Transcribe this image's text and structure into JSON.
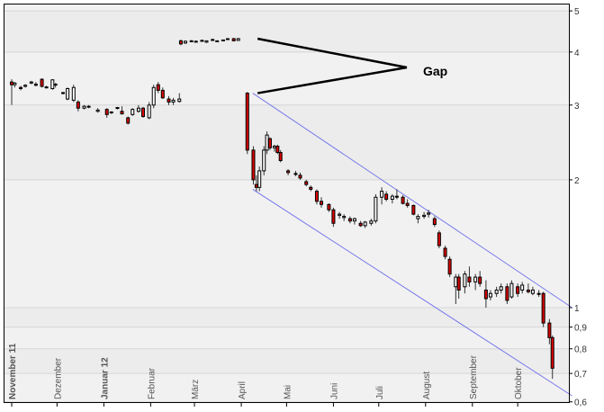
{
  "chart_data": {
    "type": "candlestick",
    "title": "",
    "xlabel": "",
    "ylabel": "",
    "y_scale": "log",
    "ylim": [
      0.6,
      5.2
    ],
    "grid": true,
    "y_ticks": [
      {
        "value": 5,
        "label": "5"
      },
      {
        "value": 4,
        "label": "4"
      },
      {
        "value": 3,
        "label": "3"
      },
      {
        "value": 2,
        "label": "2"
      },
      {
        "value": 1,
        "label": "1"
      },
      {
        "value": 0.9,
        "label": "0,9"
      },
      {
        "value": 0.8,
        "label": "0,8"
      },
      {
        "value": 0.7,
        "label": "0,7"
      },
      {
        "value": 0.6,
        "label": "0,6"
      }
    ],
    "x_ticks": [
      {
        "date": "2011-11-01",
        "label": "November 11",
        "bold": true
      },
      {
        "date": "2011-12-01",
        "label": "Dezember",
        "bold": false
      },
      {
        "date": "2012-01-01",
        "label": "Januar 12",
        "bold": true
      },
      {
        "date": "2012-02-01",
        "label": "Februar",
        "bold": false
      },
      {
        "date": "2012-03-01",
        "label": "März",
        "bold": false
      },
      {
        "date": "2012-04-01",
        "label": "April",
        "bold": false
      },
      {
        "date": "2012-05-01",
        "label": "Mai",
        "bold": false
      },
      {
        "date": "2012-06-01",
        "label": "Juni",
        "bold": false
      },
      {
        "date": "2012-07-01",
        "label": "Juli",
        "bold": false
      },
      {
        "date": "2012-08-01",
        "label": "August",
        "bold": false
      },
      {
        "date": "2012-09-01",
        "label": "September",
        "bold": false
      },
      {
        "date": "2012-10-01",
        "label": "Oktober",
        "bold": false
      }
    ],
    "colors": {
      "up": "#ffffff",
      "down": "#dd0000",
      "outline": "#000000",
      "channel": "#7777ee",
      "grid": "#d6d6d6",
      "background": "#eeeeee"
    },
    "candles_columns": [
      "date",
      "open",
      "high",
      "low",
      "close"
    ],
    "candles": [
      [
        "2011-11-01",
        3.4,
        3.45,
        3.0,
        3.35
      ],
      [
        "2011-11-03",
        3.35,
        3.4,
        3.3,
        3.38
      ],
      [
        "2011-11-07",
        3.3,
        3.33,
        3.25,
        3.28
      ],
      [
        "2011-11-10",
        3.32,
        3.36,
        3.3,
        3.34
      ],
      [
        "2011-11-14",
        3.38,
        3.42,
        3.36,
        3.4
      ],
      [
        "2011-11-17",
        3.36,
        3.4,
        3.32,
        3.34
      ],
      [
        "2011-11-21",
        3.45,
        3.47,
        3.3,
        3.32
      ],
      [
        "2011-11-24",
        3.3,
        3.33,
        3.28,
        3.31
      ],
      [
        "2011-11-28",
        3.28,
        3.45,
        3.26,
        3.44
      ],
      [
        "2011-11-30",
        3.35,
        3.38,
        3.3,
        3.36
      ],
      [
        "2011-12-05",
        3.2,
        3.22,
        3.18,
        3.21
      ],
      [
        "2011-12-08",
        3.1,
        3.3,
        3.08,
        3.28
      ],
      [
        "2011-12-12",
        3.08,
        3.35,
        3.05,
        3.3
      ],
      [
        "2011-12-15",
        3.05,
        3.08,
        2.9,
        2.95
      ],
      [
        "2011-12-19",
        2.95,
        3.0,
        2.93,
        2.98
      ],
      [
        "2011-12-22",
        2.97,
        3.0,
        2.95,
        2.98
      ],
      [
        "2011-12-28",
        2.9,
        2.95,
        2.88,
        2.92
      ],
      [
        "2012-01-03",
        2.93,
        2.95,
        2.8,
        2.85
      ],
      [
        "2012-01-06",
        2.88,
        2.9,
        2.86,
        2.89
      ],
      [
        "2012-01-10",
        2.95,
        2.97,
        2.93,
        2.96
      ],
      [
        "2012-01-13",
        2.9,
        2.98,
        2.85,
        2.86
      ],
      [
        "2012-01-17",
        2.8,
        2.82,
        2.7,
        2.72
      ],
      [
        "2012-01-20",
        2.85,
        2.95,
        2.83,
        2.93
      ],
      [
        "2012-01-24",
        2.9,
        3.0,
        2.88,
        2.95
      ],
      [
        "2012-01-27",
        2.95,
        2.97,
        2.8,
        2.82
      ],
      [
        "2012-01-31",
        2.8,
        3.05,
        2.78,
        3.0
      ],
      [
        "2012-02-03",
        3.0,
        3.35,
        2.95,
        3.3
      ],
      [
        "2012-02-06",
        3.35,
        3.4,
        3.2,
        3.25
      ],
      [
        "2012-02-09",
        3.25,
        3.3,
        3.1,
        3.12
      ],
      [
        "2012-02-13",
        3.1,
        3.15,
        3.0,
        3.05
      ],
      [
        "2012-02-16",
        3.05,
        3.12,
        3.0,
        3.08
      ],
      [
        "2012-02-20",
        3.06,
        3.2,
        3.04,
        3.1
      ],
      [
        "2012-02-21",
        4.25,
        4.28,
        4.15,
        4.18
      ],
      [
        "2012-02-24",
        4.2,
        4.26,
        4.18,
        4.24
      ],
      [
        "2012-02-28",
        4.24,
        4.27,
        4.22,
        4.25
      ],
      [
        "2012-03-02",
        4.24,
        4.26,
        4.22,
        4.23
      ],
      [
        "2012-03-06",
        4.25,
        4.28,
        4.24,
        4.26
      ],
      [
        "2012-03-09",
        4.22,
        4.26,
        4.2,
        4.25
      ],
      [
        "2012-03-13",
        4.27,
        4.3,
        4.25,
        4.28
      ],
      [
        "2012-03-16",
        4.24,
        4.26,
        4.23,
        4.25
      ],
      [
        "2012-03-20",
        4.26,
        4.28,
        4.25,
        4.27
      ],
      [
        "2012-03-23",
        4.28,
        4.31,
        4.27,
        4.3
      ],
      [
        "2012-03-27",
        4.3,
        4.32,
        4.24,
        4.25
      ],
      [
        "2012-03-30",
        4.26,
        4.32,
        4.25,
        4.3
      ],
      [
        "2012-04-05",
        3.2,
        3.22,
        2.3,
        2.35
      ],
      [
        "2012-04-09",
        2.35,
        2.4,
        1.95,
        2.0
      ],
      [
        "2012-04-11",
        1.95,
        2.05,
        1.88,
        1.92
      ],
      [
        "2012-04-13",
        1.92,
        2.15,
        1.88,
        2.1
      ],
      [
        "2012-04-16",
        2.1,
        2.4,
        2.05,
        2.35
      ],
      [
        "2012-04-18",
        2.35,
        2.6,
        2.3,
        2.55
      ],
      [
        "2012-04-20",
        2.5,
        2.52,
        2.35,
        2.38
      ],
      [
        "2012-04-23",
        2.38,
        2.42,
        2.33,
        2.4
      ],
      [
        "2012-04-25",
        2.4,
        2.42,
        2.3,
        2.32
      ],
      [
        "2012-04-27",
        2.32,
        2.35,
        2.2,
        2.22
      ],
      [
        "2012-05-02",
        2.1,
        2.12,
        2.05,
        2.08
      ],
      [
        "2012-05-07",
        2.07,
        2.1,
        2.04,
        2.06
      ],
      [
        "2012-05-10",
        2.05,
        2.08,
        2.0,
        2.02
      ],
      [
        "2012-05-14",
        1.98,
        2.0,
        1.93,
        1.95
      ],
      [
        "2012-05-17",
        1.92,
        1.94,
        1.88,
        1.9
      ],
      [
        "2012-05-21",
        1.88,
        1.9,
        1.75,
        1.78
      ],
      [
        "2012-05-24",
        1.78,
        1.82,
        1.72,
        1.75
      ],
      [
        "2012-05-29",
        1.75,
        1.76,
        1.68,
        1.7
      ],
      [
        "2012-06-01",
        1.7,
        1.72,
        1.55,
        1.58
      ],
      [
        "2012-06-05",
        1.65,
        1.68,
        1.62,
        1.66
      ],
      [
        "2012-06-08",
        1.63,
        1.66,
        1.6,
        1.64
      ],
      [
        "2012-06-12",
        1.62,
        1.64,
        1.58,
        1.6
      ],
      [
        "2012-06-15",
        1.6,
        1.63,
        1.57,
        1.62
      ],
      [
        "2012-06-19",
        1.58,
        1.6,
        1.55,
        1.56
      ],
      [
        "2012-06-22",
        1.56,
        1.6,
        1.54,
        1.59
      ],
      [
        "2012-06-26",
        1.58,
        1.62,
        1.56,
        1.6
      ],
      [
        "2012-06-29",
        1.6,
        1.85,
        1.58,
        1.82
      ],
      [
        "2012-07-03",
        1.82,
        1.92,
        1.75,
        1.88
      ],
      [
        "2012-07-06",
        1.85,
        1.88,
        1.78,
        1.8
      ],
      [
        "2012-07-10",
        1.8,
        1.85,
        1.76,
        1.83
      ],
      [
        "2012-07-13",
        1.83,
        1.9,
        1.8,
        1.82
      ],
      [
        "2012-07-17",
        1.82,
        1.84,
        1.75,
        1.76
      ],
      [
        "2012-07-20",
        1.76,
        1.8,
        1.72,
        1.74
      ],
      [
        "2012-07-24",
        1.74,
        1.75,
        1.65,
        1.66
      ],
      [
        "2012-07-27",
        1.62,
        1.66,
        1.58,
        1.64
      ],
      [
        "2012-07-31",
        1.64,
        1.68,
        1.62,
        1.65
      ],
      [
        "2012-08-03",
        1.66,
        1.7,
        1.63,
        1.67
      ],
      [
        "2012-08-07",
        1.62,
        1.64,
        1.55,
        1.57
      ],
      [
        "2012-08-10",
        1.5,
        1.52,
        1.38,
        1.4
      ],
      [
        "2012-08-14",
        1.38,
        1.4,
        1.3,
        1.32
      ],
      [
        "2012-08-17",
        1.3,
        1.32,
        1.18,
        1.2
      ],
      [
        "2012-08-21",
        1.12,
        1.2,
        1.02,
        1.18
      ],
      [
        "2012-08-23",
        1.18,
        1.2,
        1.05,
        1.1
      ],
      [
        "2012-08-27",
        1.12,
        1.22,
        1.08,
        1.2
      ],
      [
        "2012-08-30",
        1.18,
        1.25,
        1.12,
        1.15
      ],
      [
        "2012-09-03",
        1.15,
        1.2,
        1.1,
        1.18
      ],
      [
        "2012-09-06",
        1.18,
        1.22,
        1.12,
        1.14
      ],
      [
        "2012-09-10",
        1.1,
        1.16,
        1.0,
        1.05
      ],
      [
        "2012-09-13",
        1.06,
        1.1,
        1.04,
        1.08
      ],
      [
        "2012-09-17",
        1.08,
        1.12,
        1.06,
        1.1
      ],
      [
        "2012-09-20",
        1.1,
        1.14,
        1.08,
        1.12
      ],
      [
        "2012-09-24",
        1.12,
        1.14,
        1.02,
        1.04
      ],
      [
        "2012-09-27",
        1.06,
        1.16,
        1.05,
        1.14
      ],
      [
        "2012-10-01",
        1.12,
        1.14,
        1.06,
        1.08
      ],
      [
        "2012-10-04",
        1.1,
        1.15,
        1.08,
        1.13
      ],
      [
        "2012-10-08",
        1.1,
        1.14,
        1.08,
        1.09
      ],
      [
        "2012-10-11",
        1.08,
        1.12,
        1.07,
        1.1
      ],
      [
        "2012-10-15",
        1.08,
        1.1,
        1.06,
        1.08
      ],
      [
        "2012-10-18",
        1.08,
        1.09,
        0.9,
        0.92
      ],
      [
        "2012-10-22",
        0.92,
        0.94,
        0.82,
        0.85
      ],
      [
        "2012-10-24",
        0.85,
        0.86,
        0.68,
        0.72
      ]
    ],
    "trend_channel": [
      {
        "from": [
          "2012-04-05",
          3.2
        ],
        "to": [
          "2012-10-31",
          1.0
        ]
      },
      {
        "from": [
          "2012-04-05",
          1.9
        ],
        "to": [
          "2012-10-31",
          0.62
        ]
      }
    ],
    "annotations": [
      {
        "text": "Gap",
        "points_to": [
          [
            "2012-04-07",
            4.3
          ],
          [
            "2012-04-07",
            3.2
          ]
        ]
      }
    ]
  }
}
